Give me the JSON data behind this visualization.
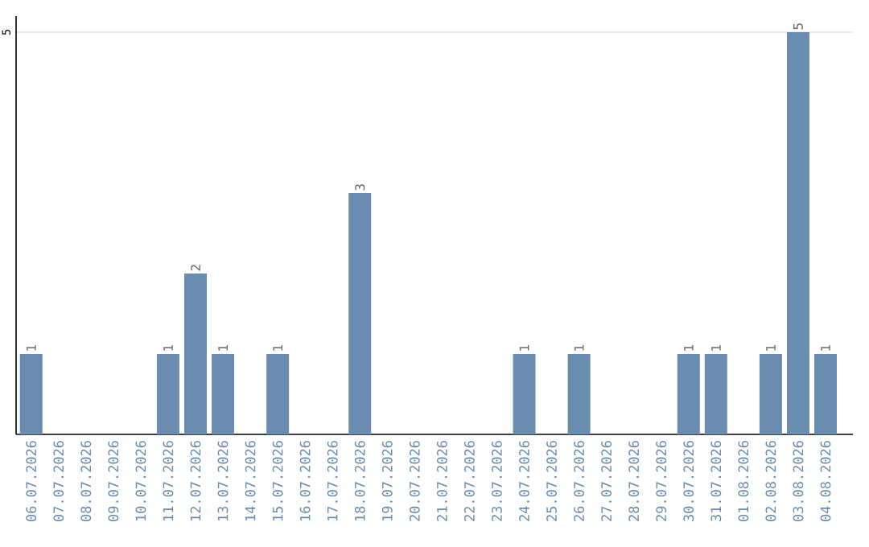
{
  "chart_data": {
    "type": "bar",
    "categories": [
      "06.07.2026",
      "07.07.2026",
      "08.07.2026",
      "09.07.2026",
      "10.07.2026",
      "11.07.2026",
      "12.07.2026",
      "13.07.2026",
      "14.07.2026",
      "15.07.2026",
      "16.07.2026",
      "17.07.2026",
      "18.07.2026",
      "19.07.2026",
      "20.07.2026",
      "21.07.2026",
      "22.07.2026",
      "23.07.2026",
      "24.07.2026",
      "25.07.2026",
      "26.07.2026",
      "27.07.2026",
      "28.07.2026",
      "29.07.2026",
      "30.07.2026",
      "31.07.2026",
      "01.08.2026",
      "02.08.2026",
      "03.08.2026",
      "04.08.2026"
    ],
    "values": [
      1,
      0,
      0,
      0,
      0,
      1,
      2,
      1,
      0,
      1,
      0,
      0,
      3,
      0,
      0,
      0,
      0,
      0,
      1,
      0,
      1,
      0,
      0,
      0,
      1,
      1,
      0,
      1,
      5,
      1
    ],
    "value_labels": [
      "1",
      null,
      null,
      null,
      null,
      "1",
      "2",
      "1",
      null,
      "1",
      null,
      null,
      "3",
      null,
      null,
      null,
      null,
      null,
      "1",
      null,
      "1",
      null,
      null,
      null,
      "1",
      "1",
      null,
      "1",
      "5",
      "1"
    ],
    "color": "#6a8caf",
    "ylim": [
      0,
      5.2
    ],
    "yticks": [
      5
    ],
    "grid": "y"
  }
}
